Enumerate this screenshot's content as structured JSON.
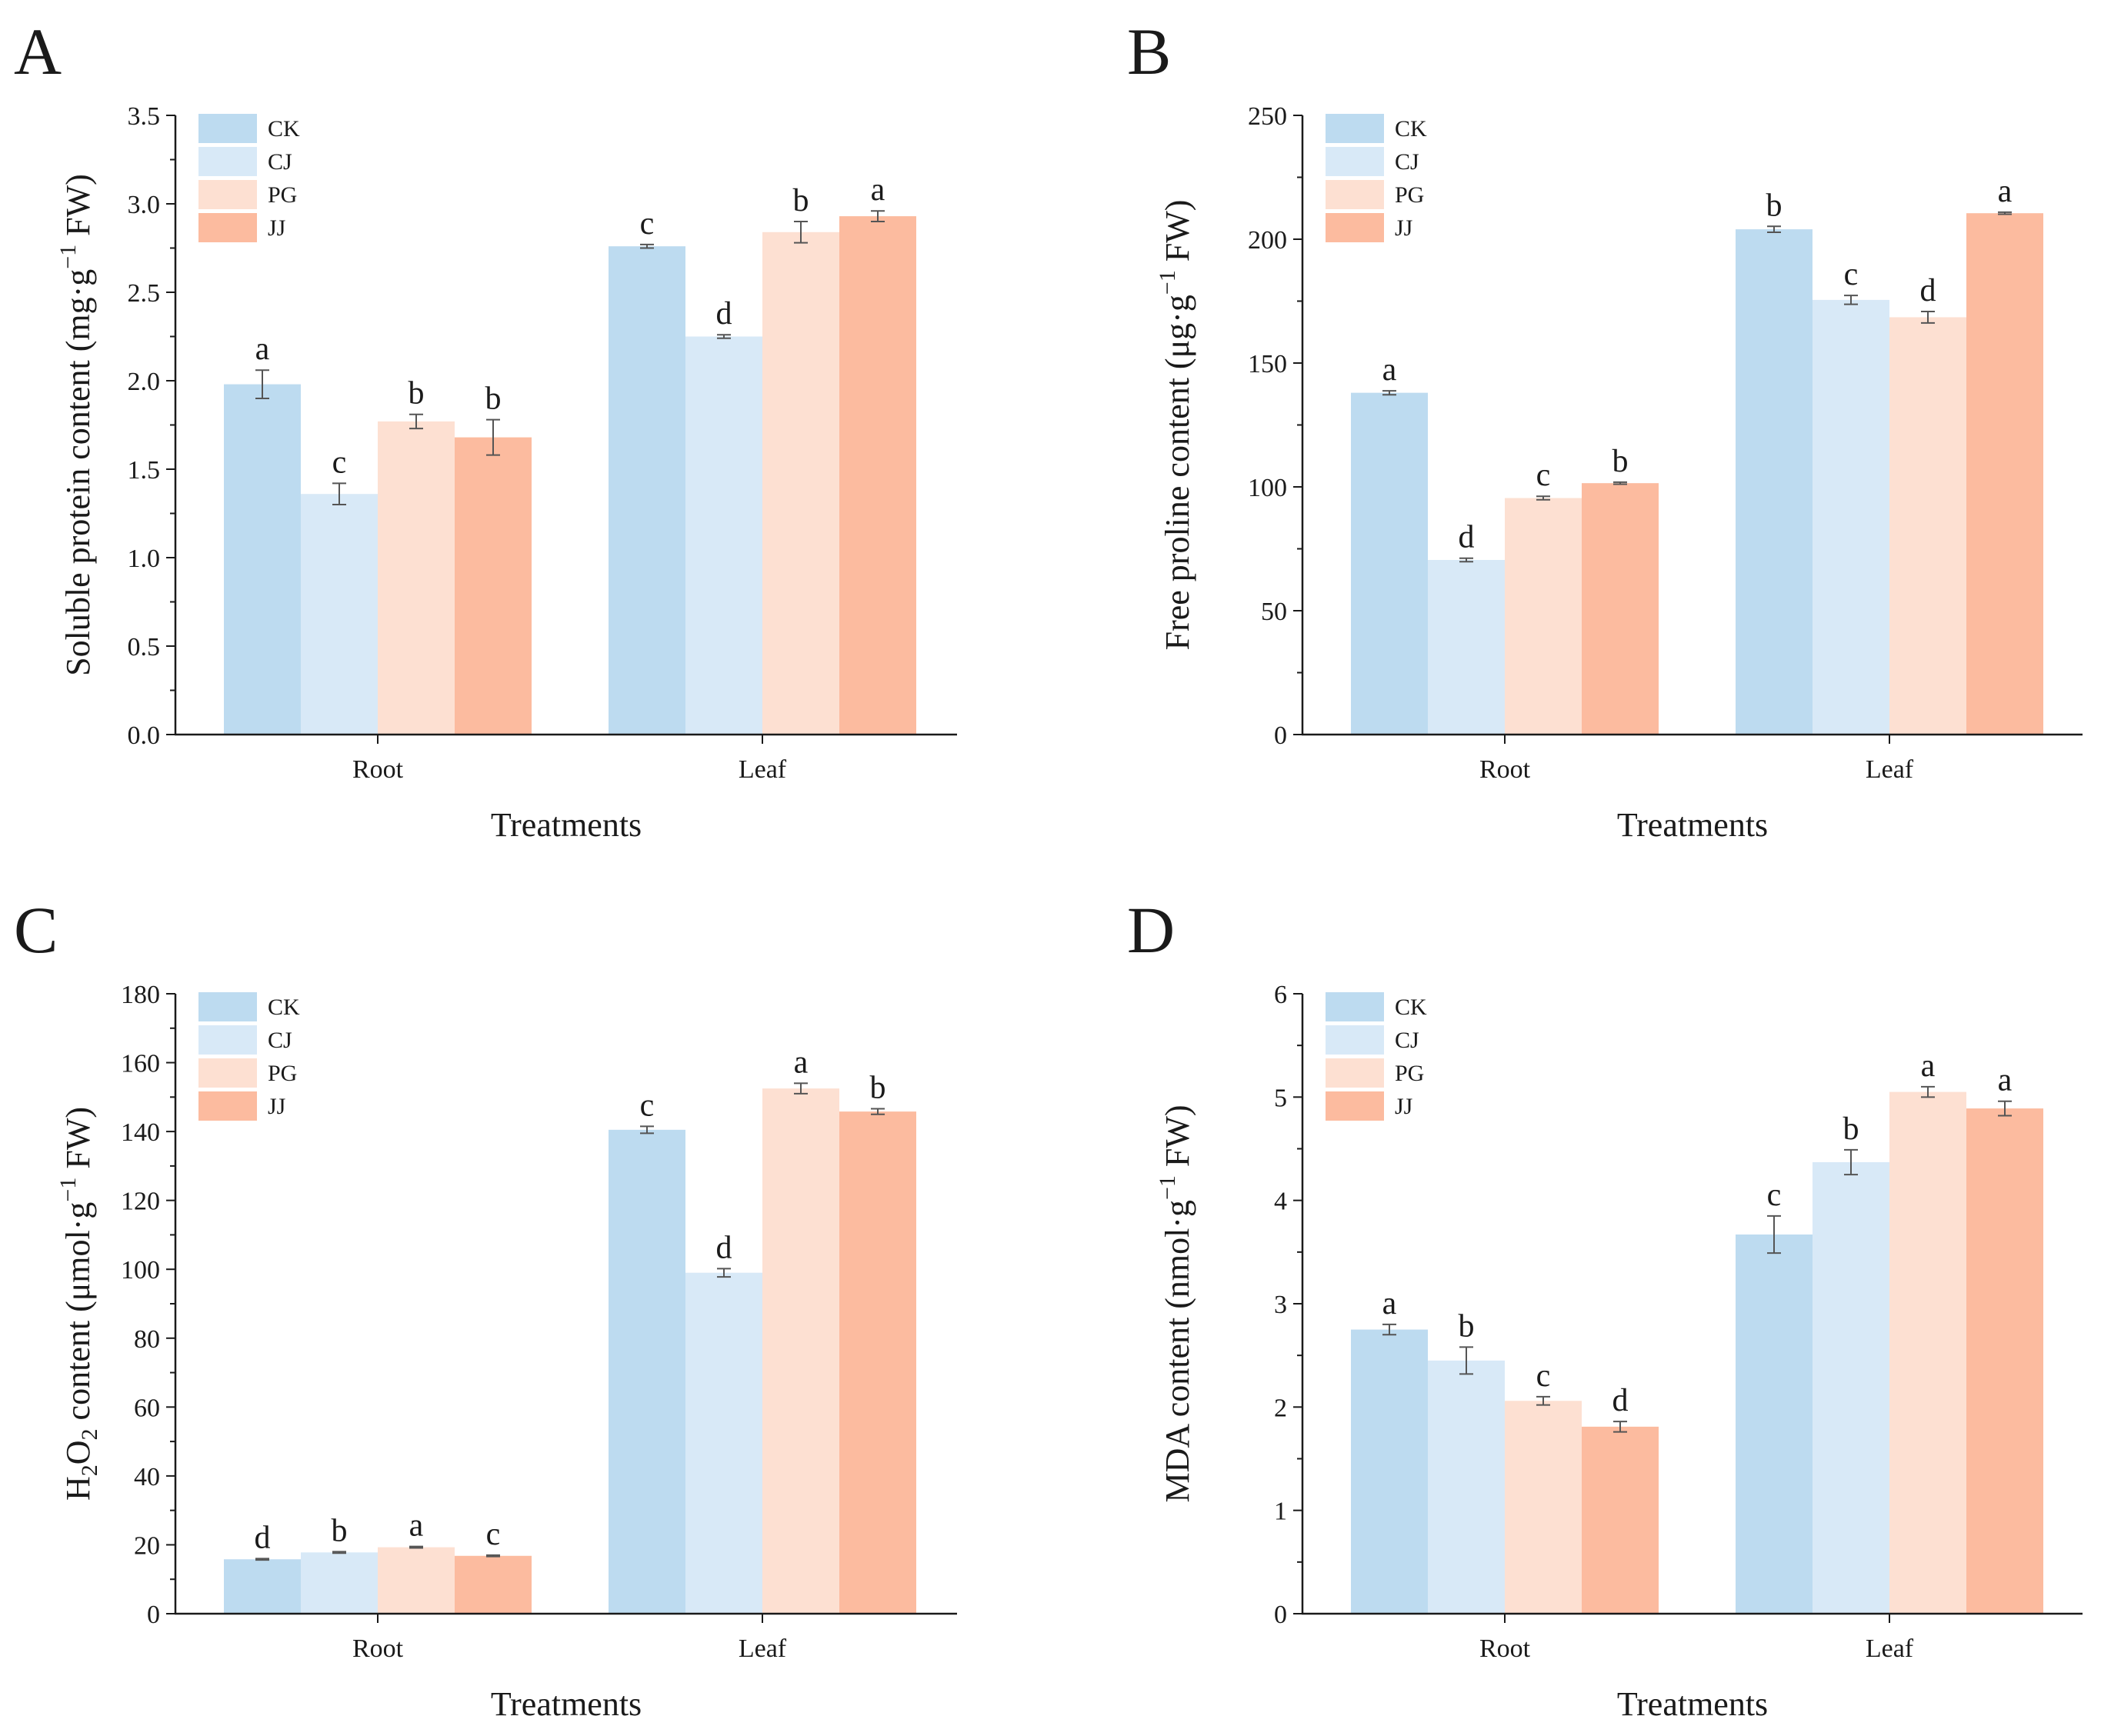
{
  "figure": {
    "panels": [
      "A",
      "B",
      "C",
      "D"
    ]
  },
  "colors": {
    "CK": "#bddbf0",
    "CJ": "#d8e9f7",
    "PG": "#fde0d2",
    "JJ": "#fcbb9f",
    "axis": "#1a1a1a",
    "error": "#555555"
  },
  "chart_data": [
    {
      "panel": "A",
      "type": "bar",
      "categories": [
        "Root",
        "Leaf"
      ],
      "xlabel": "Treatments",
      "ylabel_parts": [
        "Soluble protein content (mg·g",
        "−1",
        " FW)"
      ],
      "ylim": [
        0,
        3.5
      ],
      "yticks": [
        "0.0",
        "0.5",
        "1.0",
        "1.5",
        "2.0",
        "2.5",
        "3.0",
        "3.5"
      ],
      "series": [
        {
          "name": "CK",
          "values": [
            1.98,
            2.76
          ],
          "errors": [
            0.08,
            0.01
          ],
          "letters": [
            "a",
            "c"
          ]
        },
        {
          "name": "CJ",
          "values": [
            1.36,
            2.25
          ],
          "errors": [
            0.06,
            0.01
          ],
          "letters": [
            "c",
            "d"
          ]
        },
        {
          "name": "PG",
          "values": [
            1.77,
            2.84
          ],
          "errors": [
            0.04,
            0.06
          ],
          "letters": [
            "b",
            "b"
          ]
        },
        {
          "name": "JJ",
          "values": [
            1.68,
            2.93
          ],
          "errors": [
            0.1,
            0.03
          ],
          "letters": [
            "b",
            "a"
          ]
        }
      ]
    },
    {
      "panel": "B",
      "type": "bar",
      "categories": [
        "Root",
        "Leaf"
      ],
      "xlabel": "Treatments",
      "ylabel_parts": [
        "Free proline content (μg·g",
        "−1",
        " FW)"
      ],
      "ylim": [
        0,
        250
      ],
      "yticks": [
        "0",
        "50",
        "100",
        "150",
        "200",
        "250"
      ],
      "series": [
        {
          "name": "CK",
          "values": [
            138,
            204
          ],
          "errors": [
            0.8,
            1.2
          ],
          "letters": [
            "a",
            "b"
          ]
        },
        {
          "name": "CJ",
          "values": [
            70.5,
            175.5
          ],
          "errors": [
            0.7,
            1.8
          ],
          "letters": [
            "d",
            "c"
          ]
        },
        {
          "name": "PG",
          "values": [
            95.5,
            168.5
          ],
          "errors": [
            0.7,
            2.3
          ],
          "letters": [
            "c",
            "d"
          ]
        },
        {
          "name": "JJ",
          "values": [
            101.5,
            210.5
          ],
          "errors": [
            0.4,
            0.4
          ],
          "letters": [
            "b",
            "a"
          ]
        }
      ]
    },
    {
      "panel": "C",
      "type": "bar",
      "categories": [
        "Root",
        "Leaf"
      ],
      "xlabel": "Treatments",
      "ylabel_parts": [
        "H",
        "2",
        "O",
        "2",
        " content (μmol·g",
        "−1",
        " FW)"
      ],
      "ylim": [
        0,
        180
      ],
      "yticks": [
        "0",
        "20",
        "40",
        "60",
        "80",
        "100",
        "120",
        "140",
        "160",
        "180"
      ],
      "series": [
        {
          "name": "CK",
          "values": [
            15.8,
            140.5
          ],
          "errors": [
            0.2,
            1.0
          ],
          "letters": [
            "d",
            "c"
          ]
        },
        {
          "name": "CJ",
          "values": [
            17.8,
            99.0
          ],
          "errors": [
            0.2,
            1.2
          ],
          "letters": [
            "b",
            "d"
          ]
        },
        {
          "name": "PG",
          "values": [
            19.3,
            152.5
          ],
          "errors": [
            0.2,
            1.5
          ],
          "letters": [
            "a",
            "a"
          ]
        },
        {
          "name": "JJ",
          "values": [
            16.8,
            145.8
          ],
          "errors": [
            0.2,
            0.8
          ],
          "letters": [
            "c",
            "b"
          ]
        }
      ]
    },
    {
      "panel": "D",
      "type": "bar",
      "categories": [
        "Root",
        "Leaf"
      ],
      "xlabel": "Treatments",
      "ylabel_parts": [
        "MDA content (nmol·g",
        "−1",
        " FW)"
      ],
      "ylim": [
        0,
        6
      ],
      "yticks": [
        "0",
        "1",
        "2",
        "3",
        "4",
        "5",
        "6"
      ],
      "series": [
        {
          "name": "CK",
          "values": [
            2.75,
            3.67
          ],
          "errors": [
            0.05,
            0.18
          ],
          "letters": [
            "a",
            "c"
          ]
        },
        {
          "name": "CJ",
          "values": [
            2.45,
            4.37
          ],
          "errors": [
            0.13,
            0.12
          ],
          "letters": [
            "b",
            "b"
          ]
        },
        {
          "name": "PG",
          "values": [
            2.06,
            5.05
          ],
          "errors": [
            0.04,
            0.05
          ],
          "letters": [
            "c",
            "a"
          ]
        },
        {
          "name": "JJ",
          "values": [
            1.81,
            4.89
          ],
          "errors": [
            0.05,
            0.07
          ],
          "letters": [
            "d",
            "a"
          ]
        }
      ]
    }
  ]
}
